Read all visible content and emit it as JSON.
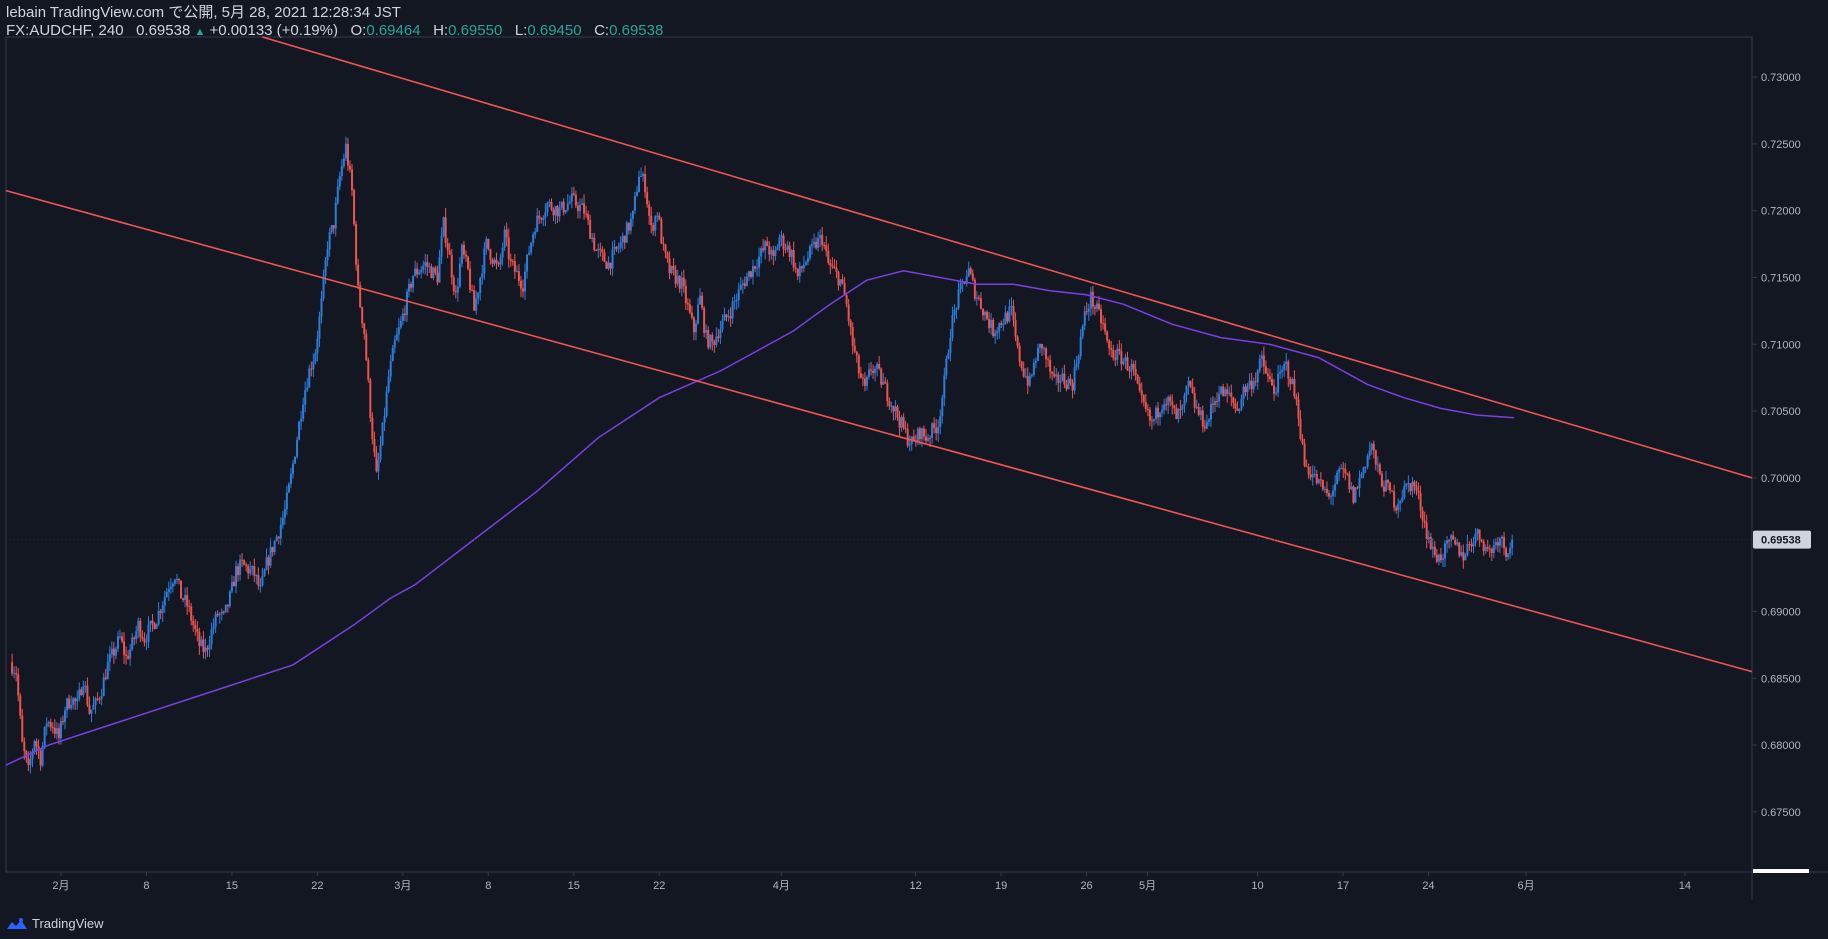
{
  "header": {
    "publisher_line": "lebain TradingView.com で公開, 5月 28, 2021 12:28:34 JST",
    "symbol": "FX:AUDCHF, 240",
    "last": "0.69538",
    "change": "+0.00133 (+0.19%)",
    "o_label": "O:",
    "o_value": "0.69464",
    "h_label": "H:",
    "h_value": "0.69550",
    "l_label": "L:",
    "l_value": "0.69450",
    "c_label": "C:",
    "c_value": "0.69538"
  },
  "footer": {
    "brand": "TradingView",
    "icon": "tradingview-logo-icon"
  },
  "colors": {
    "background": "#131722",
    "up": "#2a7fde",
    "down": "#ef5350",
    "trendline": "#f05454",
    "ma": "#7b3fe4",
    "axis_text": "#b2b5be",
    "border": "#363a45",
    "price_badge": "#d1d4dc"
  },
  "chart_data": {
    "type": "candlestick",
    "symbol": "FX:AUDCHF",
    "interval": "240",
    "ylim": [
      0.6705,
      0.733
    ],
    "y_ticks": [
      "0.73000",
      "0.72500",
      "0.72000",
      "0.71500",
      "0.71000",
      "0.70500",
      "0.70000",
      "0.69500",
      "0.69000",
      "0.68500",
      "0.68000",
      "0.67500"
    ],
    "x_ticks": [
      {
        "label": "2月",
        "day": 1
      },
      {
        "label": "8",
        "day": 8
      },
      {
        "label": "15",
        "day": 15
      },
      {
        "label": "22",
        "day": 22
      },
      {
        "label": "3月",
        "day": 29
      },
      {
        "label": "8",
        "day": 36
      },
      {
        "label": "15",
        "day": 43
      },
      {
        "label": "22",
        "day": 50
      },
      {
        "label": "4月",
        "day": 60
      },
      {
        "label": "12",
        "day": 71
      },
      {
        "label": "19",
        "day": 78
      },
      {
        "label": "26",
        "day": 85
      },
      {
        "label": "5月",
        "day": 90
      },
      {
        "label": "10",
        "day": 99
      },
      {
        "label": "17",
        "day": 106
      },
      {
        "label": "24",
        "day": 113
      },
      {
        "label": "6月",
        "day": 121
      },
      {
        "label": "14",
        "day": 134
      }
    ],
    "x_day_range": [
      -3.5,
      139.5
    ],
    "current_price": "0.69538",
    "price_anchors": [
      [
        -3.0,
        0.6862
      ],
      [
        -2.5,
        0.6855
      ],
      [
        -2.0,
        0.68
      ],
      [
        -1.5,
        0.678
      ],
      [
        -1.0,
        0.6805
      ],
      [
        -0.5,
        0.679
      ],
      [
        0.0,
        0.6818
      ],
      [
        0.5,
        0.6815
      ],
      [
        1.0,
        0.6805
      ],
      [
        1.5,
        0.6828
      ],
      [
        2.0,
        0.6835
      ],
      [
        2.5,
        0.683
      ],
      [
        3.0,
        0.685
      ],
      [
        3.5,
        0.6825
      ],
      [
        4.0,
        0.683
      ],
      [
        4.5,
        0.6842
      ],
      [
        5.0,
        0.686
      ],
      [
        5.5,
        0.687
      ],
      [
        6.0,
        0.688
      ],
      [
        6.5,
        0.6865
      ],
      [
        7.0,
        0.6875
      ],
      [
        7.5,
        0.689
      ],
      [
        8.0,
        0.688
      ],
      [
        9.0,
        0.6895
      ],
      [
        10.0,
        0.692
      ],
      [
        10.5,
        0.6928
      ],
      [
        11.0,
        0.6912
      ],
      [
        11.5,
        0.6905
      ],
      [
        12.0,
        0.689
      ],
      [
        12.5,
        0.6875
      ],
      [
        13.0,
        0.687
      ],
      [
        13.5,
        0.6885
      ],
      [
        14.0,
        0.6898
      ],
      [
        14.5,
        0.6895
      ],
      [
        15.0,
        0.691
      ],
      [
        15.5,
        0.693
      ],
      [
        16.0,
        0.6935
      ],
      [
        17.0,
        0.6928
      ],
      [
        17.5,
        0.6915
      ],
      [
        18.0,
        0.6935
      ],
      [
        18.5,
        0.6948
      ],
      [
        19.0,
        0.696
      ],
      [
        19.5,
        0.6975
      ],
      [
        20.0,
        0.7
      ],
      [
        20.5,
        0.703
      ],
      [
        21.0,
        0.706
      ],
      [
        21.5,
        0.708
      ],
      [
        22.0,
        0.7095
      ],
      [
        22.5,
        0.713
      ],
      [
        23.0,
        0.7175
      ],
      [
        23.5,
        0.719
      ],
      [
        24.0,
        0.7225
      ],
      [
        24.5,
        0.7248
      ],
      [
        25.0,
        0.7215
      ],
      [
        25.5,
        0.714
      ],
      [
        26.0,
        0.711
      ],
      [
        26.5,
        0.705
      ],
      [
        27.0,
        0.7
      ],
      [
        27.5,
        0.7035
      ],
      [
        28.0,
        0.7075
      ],
      [
        28.5,
        0.71
      ],
      [
        29.0,
        0.7115
      ],
      [
        30.0,
        0.7152
      ],
      [
        31.0,
        0.716
      ],
      [
        32.0,
        0.715
      ],
      [
        32.5,
        0.719
      ],
      [
        33.0,
        0.7165
      ],
      [
        33.5,
        0.7135
      ],
      [
        34.0,
        0.717
      ],
      [
        34.5,
        0.7155
      ],
      [
        35.0,
        0.7125
      ],
      [
        35.5,
        0.715
      ],
      [
        36.0,
        0.7175
      ],
      [
        37.0,
        0.7155
      ],
      [
        37.5,
        0.7182
      ],
      [
        38.0,
        0.716
      ],
      [
        39.0,
        0.7145
      ],
      [
        39.5,
        0.717
      ],
      [
        40.0,
        0.719
      ],
      [
        41.0,
        0.7205
      ],
      [
        42.0,
        0.72
      ],
      [
        43.0,
        0.7208
      ],
      [
        44.0,
        0.72
      ],
      [
        44.5,
        0.7185
      ],
      [
        45.0,
        0.717
      ],
      [
        46.0,
        0.716
      ],
      [
        47.0,
        0.7175
      ],
      [
        48.0,
        0.7195
      ],
      [
        48.5,
        0.7228
      ],
      [
        49.0,
        0.722
      ],
      [
        49.5,
        0.7185
      ],
      [
        50.0,
        0.72
      ],
      [
        50.5,
        0.717
      ],
      [
        51.0,
        0.7155
      ],
      [
        52.0,
        0.7145
      ],
      [
        53.0,
        0.711
      ],
      [
        53.5,
        0.7135
      ],
      [
        54.0,
        0.7105
      ],
      [
        54.5,
        0.71
      ],
      [
        55.0,
        0.711
      ],
      [
        56.0,
        0.7125
      ],
      [
        57.0,
        0.7145
      ],
      [
        58.0,
        0.716
      ],
      [
        59.0,
        0.7175
      ],
      [
        59.5,
        0.7162
      ],
      [
        60.0,
        0.718
      ],
      [
        61.0,
        0.7168
      ],
      [
        61.5,
        0.715
      ],
      [
        62.0,
        0.716
      ],
      [
        63.0,
        0.7175
      ],
      [
        63.5,
        0.718
      ],
      [
        64.0,
        0.716
      ],
      [
        65.0,
        0.7148
      ],
      [
        65.5,
        0.713
      ],
      [
        66.0,
        0.71
      ],
      [
        66.5,
        0.708
      ],
      [
        67.0,
        0.7065
      ],
      [
        67.5,
        0.7082
      ],
      [
        68.0,
        0.708
      ],
      [
        69.0,
        0.706
      ],
      [
        70.0,
        0.704
      ],
      [
        70.5,
        0.703
      ],
      [
        71.0,
        0.7025
      ],
      [
        71.5,
        0.7035
      ],
      [
        72.0,
        0.703
      ],
      [
        72.5,
        0.7035
      ],
      [
        73.0,
        0.704
      ],
      [
        73.5,
        0.707
      ],
      [
        74.0,
        0.711
      ],
      [
        74.5,
        0.713
      ],
      [
        75.0,
        0.7145
      ],
      [
        75.5,
        0.7155
      ],
      [
        76.0,
        0.714
      ],
      [
        76.5,
        0.713
      ],
      [
        77.0,
        0.712
      ],
      [
        77.5,
        0.711
      ],
      [
        78.0,
        0.7115
      ],
      [
        79.0,
        0.7125
      ],
      [
        79.5,
        0.7095
      ],
      [
        80.0,
        0.708
      ],
      [
        80.5,
        0.707
      ],
      [
        81.0,
        0.709
      ],
      [
        81.5,
        0.71
      ],
      [
        82.0,
        0.7085
      ],
      [
        82.5,
        0.707
      ],
      [
        83.0,
        0.7075
      ],
      [
        84.0,
        0.707
      ],
      [
        84.5,
        0.7095
      ],
      [
        85.0,
        0.712
      ],
      [
        85.5,
        0.7135
      ],
      [
        86.0,
        0.7125
      ],
      [
        86.5,
        0.7115
      ],
      [
        87.0,
        0.7095
      ],
      [
        88.0,
        0.709
      ],
      [
        89.0,
        0.708
      ],
      [
        89.5,
        0.706
      ],
      [
        90.0,
        0.705
      ],
      [
        90.5,
        0.704
      ],
      [
        91.0,
        0.705
      ],
      [
        91.5,
        0.706
      ],
      [
        92.0,
        0.7055
      ],
      [
        92.5,
        0.7045
      ],
      [
        93.0,
        0.705
      ],
      [
        93.5,
        0.707
      ],
      [
        94.0,
        0.7055
      ],
      [
        94.5,
        0.7045
      ],
      [
        95.0,
        0.704
      ],
      [
        95.5,
        0.7055
      ],
      [
        96.0,
        0.7065
      ],
      [
        97.0,
        0.706
      ],
      [
        97.5,
        0.705
      ],
      [
        98.0,
        0.7065
      ],
      [
        99.0,
        0.7075
      ],
      [
        99.5,
        0.7088
      ],
      [
        100.0,
        0.7075
      ],
      [
        100.5,
        0.7065
      ],
      [
        101.0,
        0.7075
      ],
      [
        101.5,
        0.7085
      ],
      [
        102.0,
        0.707
      ],
      [
        102.5,
        0.705
      ],
      [
        103.0,
        0.701
      ],
      [
        103.5,
        0.7005
      ],
      [
        104.0,
        0.6998
      ],
      [
        104.5,
        0.6992
      ],
      [
        105.0,
        0.6985
      ],
      [
        105.5,
        0.6995
      ],
      [
        106.0,
        0.7005
      ],
      [
        106.5,
        0.7
      ],
      [
        107.0,
        0.6985
      ],
      [
        107.5,
        0.6998
      ],
      [
        108.0,
        0.7012
      ],
      [
        108.5,
        0.7025
      ],
      [
        109.0,
        0.7005
      ],
      [
        109.5,
        0.6995
      ],
      [
        110.0,
        0.699
      ],
      [
        110.5,
        0.698
      ],
      [
        111.0,
        0.6988
      ],
      [
        111.5,
        0.6995
      ],
      [
        112.0,
        0.6995
      ],
      [
        112.5,
        0.698
      ],
      [
        113.0,
        0.696
      ],
      [
        113.5,
        0.6945
      ],
      [
        114.0,
        0.694
      ],
      [
        114.5,
        0.6945
      ],
      [
        115.0,
        0.6952
      ],
      [
        115.5,
        0.6948
      ],
      [
        116.0,
        0.6942
      ],
      [
        116.5,
        0.695
      ],
      [
        117.0,
        0.6958
      ],
      [
        117.5,
        0.6955
      ],
      [
        118.0,
        0.6945
      ],
      [
        118.5,
        0.6948
      ],
      [
        119.0,
        0.6958
      ],
      [
        119.5,
        0.6945
      ],
      [
        120.0,
        0.6954
      ]
    ],
    "trendlines": [
      {
        "name": "upper-channel-line",
        "p1": [
          17.5,
          0.733
        ],
        "p2": [
          139.5,
          0.7
        ]
      },
      {
        "name": "lower-channel-line",
        "p1": [
          -3.5,
          0.7215
        ],
        "p2": [
          139.5,
          0.6855
        ]
      }
    ],
    "moving_average": {
      "name": "moving-average",
      "points": [
        [
          -3.5,
          0.6785
        ],
        [
          0,
          0.68
        ],
        [
          5,
          0.6815
        ],
        [
          10,
          0.683
        ],
        [
          15,
          0.6845
        ],
        [
          20,
          0.686
        ],
        [
          25,
          0.689
        ],
        [
          28,
          0.691
        ],
        [
          30,
          0.692
        ],
        [
          35,
          0.6955
        ],
        [
          40,
          0.699
        ],
        [
          45,
          0.703
        ],
        [
          50,
          0.706
        ],
        [
          55,
          0.708
        ],
        [
          58,
          0.7095
        ],
        [
          61,
          0.711
        ],
        [
          64,
          0.713
        ],
        [
          67,
          0.7148
        ],
        [
          70,
          0.7155
        ],
        [
          73,
          0.715
        ],
        [
          76,
          0.7145
        ],
        [
          79,
          0.7145
        ],
        [
          82,
          0.714
        ],
        [
          85,
          0.7137
        ],
        [
          88,
          0.713
        ],
        [
          92,
          0.7115
        ],
        [
          96,
          0.7105
        ],
        [
          100,
          0.71
        ],
        [
          104,
          0.709
        ],
        [
          108,
          0.707
        ],
        [
          111,
          0.706
        ],
        [
          114,
          0.7052
        ],
        [
          117,
          0.7047
        ],
        [
          120,
          0.7045
        ]
      ]
    }
  }
}
